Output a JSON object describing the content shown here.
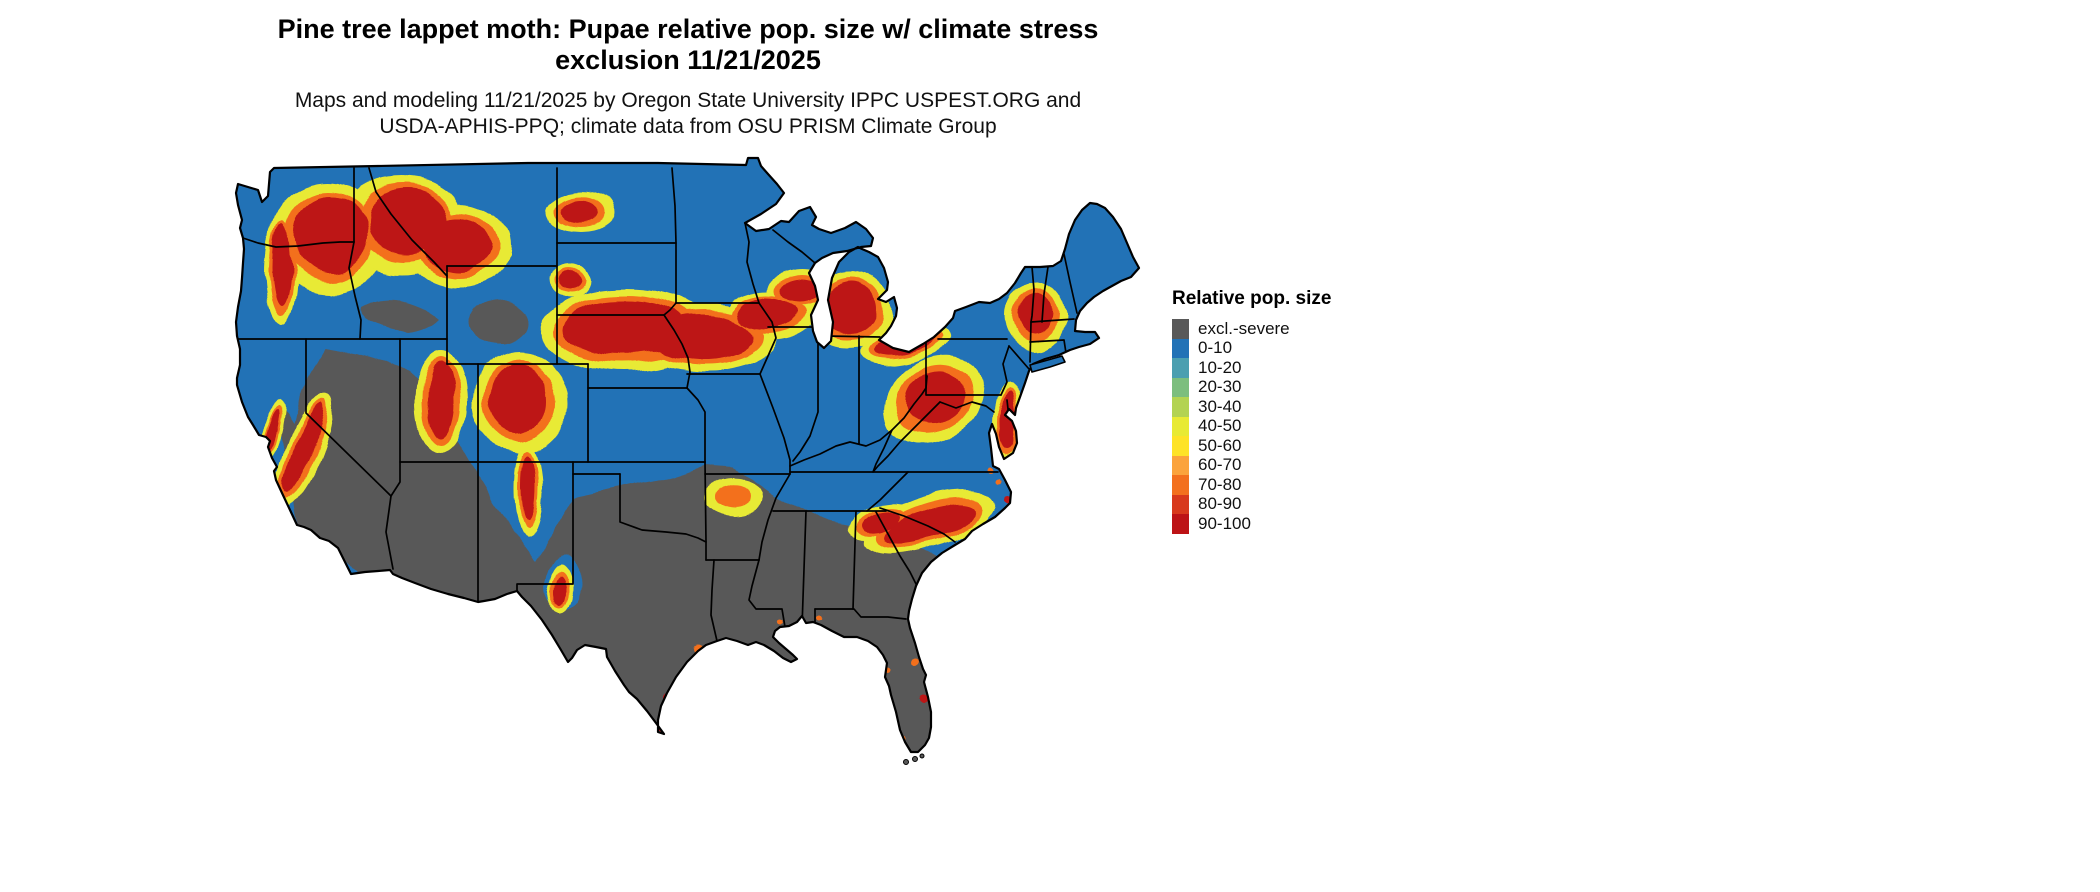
{
  "title": {
    "line1": "Pine tree lappet moth: Pupae relative pop. size w/ climate stress",
    "line2": "exclusion 11/21/2025"
  },
  "subtitle": {
    "line1": "Maps and modeling 11/21/2025 by Oregon State University IPPC USPEST.ORG and",
    "line2": "USDA-APHIS-PPQ; climate data from OSU PRISM Climate Group"
  },
  "map": {
    "area": "Contiguous United States"
  },
  "legend": {
    "title": "Relative pop. size",
    "items": [
      {
        "label": "excl.-severe",
        "color": "#595959"
      },
      {
        "label": "0-10",
        "color": "#2272b6"
      },
      {
        "label": "10-20",
        "color": "#4b9fb0"
      },
      {
        "label": "20-30",
        "color": "#7cbe7e"
      },
      {
        "label": "30-40",
        "color": "#b3d352"
      },
      {
        "label": "40-50",
        "color": "#e8ea34"
      },
      {
        "label": "50-60",
        "color": "#fee327"
      },
      {
        "label": "60-70",
        "color": "#fba33c"
      },
      {
        "label": "70-80",
        "color": "#f3701e"
      },
      {
        "label": "80-90",
        "color": "#d8391c"
      },
      {
        "label": "90-100",
        "color": "#bd1316"
      }
    ]
  }
}
